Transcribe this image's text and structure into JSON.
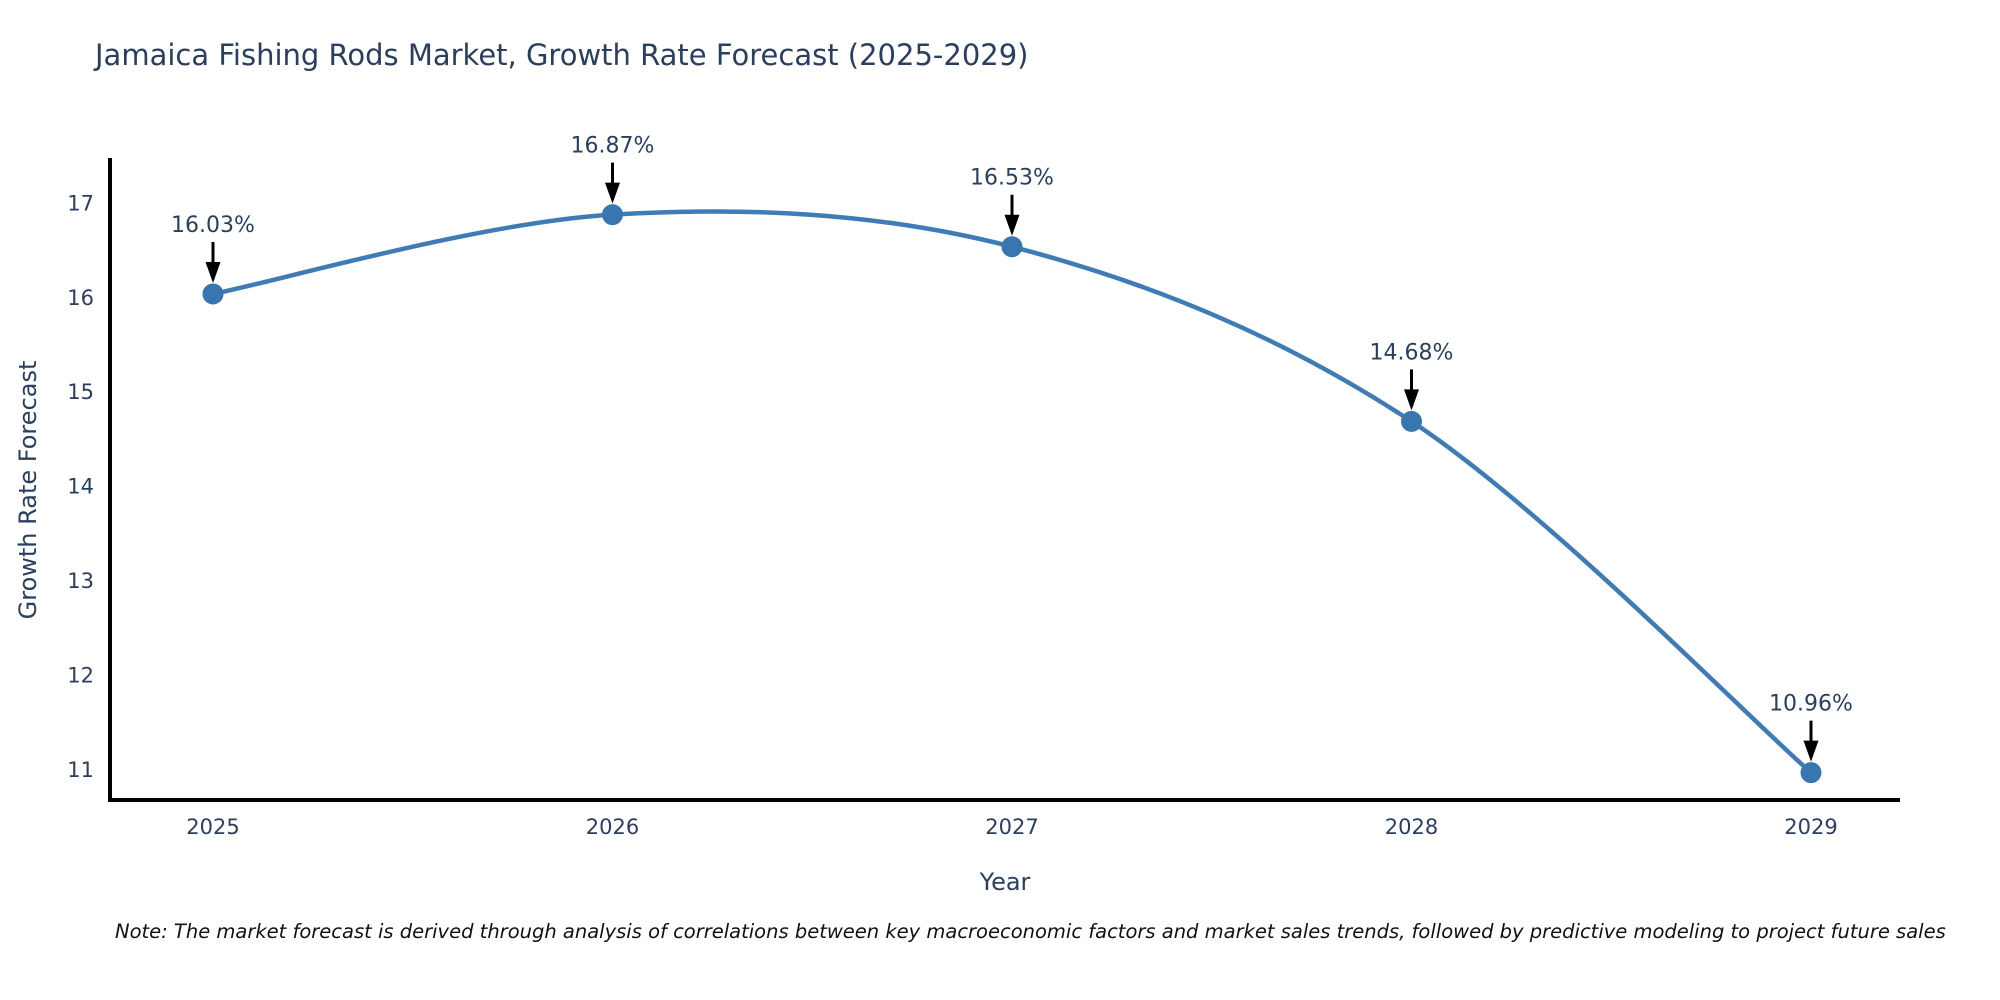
{
  "chart": {
    "note": "Note: The market forecast is derived through analysis of correlations between key macroeconomic factors and market sales trends, followed by predictive modeling to project future sales"
  },
  "chart_data": {
    "type": "line",
    "title": "Jamaica Fishing Rods Market, Growth Rate Forecast (2025-2029)",
    "xlabel": "Year",
    "ylabel": "Growth Rate Forecast",
    "categories": [
      "2025",
      "2026",
      "2027",
      "2028",
      "2029"
    ],
    "values": [
      16.03,
      16.87,
      16.53,
      14.68,
      10.96
    ],
    "annotations": [
      "16.03%",
      "16.87%",
      "16.53%",
      "14.68%",
      "10.96%"
    ],
    "yticks": [
      11,
      12,
      13,
      14,
      15,
      16,
      17
    ],
    "ylim": [
      10.67,
      17.47
    ],
    "line_shape": "spline",
    "grid": false,
    "legend": "none",
    "colors": {
      "line": "#3f7cb5",
      "marker": "#3876b0",
      "arrow": "#000000",
      "text": "#2a3f5f",
      "spine": "#000000"
    }
  }
}
